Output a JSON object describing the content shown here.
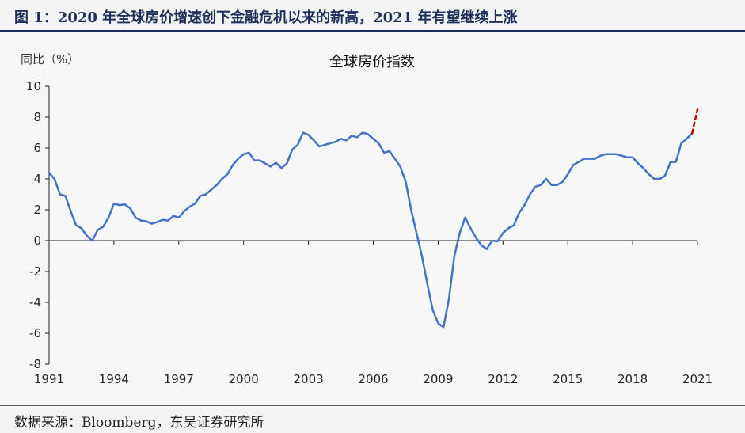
{
  "figure": {
    "title": "图 1：2020 年全球房价增速创下金融危机以来的新高，2021 年有望继续上涨",
    "source": "数据来源：Bloomberg，东吴证券研究所",
    "watermark": "watermark-text"
  },
  "colors": {
    "line": "#4472c4",
    "forecast": "#c00000",
    "axis": "#222222",
    "title_text": "#1f2f5c"
  },
  "chart_data": {
    "type": "line",
    "title": "全球房价指数",
    "ylabel": "同比（%）",
    "xlabel": "",
    "ylim": [
      -8,
      10
    ],
    "yticks": [
      10,
      8,
      6,
      4,
      2,
      0,
      -2,
      -4,
      -6,
      -8
    ],
    "xlim": [
      1991.0,
      2021.0
    ],
    "xticks": [
      "1991",
      "1994",
      "1997",
      "2000",
      "2003",
      "2006",
      "2009",
      "2012",
      "2015",
      "2018",
      "2021"
    ],
    "grid": false,
    "series": [
      {
        "style": "solid",
        "x": [
          1991.0,
          1991.25,
          1991.5,
          1991.75,
          1992.0,
          1992.25,
          1992.5,
          1992.75,
          1993.0,
          1993.25,
          1993.5,
          1993.75,
          1994.0,
          1994.25,
          1994.5,
          1994.75,
          1995.0,
          1995.25,
          1995.5,
          1995.75,
          1996.0,
          1996.25,
          1996.5,
          1996.75,
          1997.0,
          1997.25,
          1997.5,
          1997.75,
          1998.0,
          1998.25,
          1998.5,
          1998.75,
          1999.0,
          1999.25,
          1999.5,
          1999.75,
          2000.0,
          2000.25,
          2000.5,
          2000.75,
          2001.0,
          2001.25,
          2001.5,
          2001.75,
          2002.0,
          2002.25,
          2002.5,
          2002.75,
          2003.0,
          2003.25,
          2003.5,
          2003.75,
          2004.0,
          2004.25,
          2004.5,
          2004.75,
          2005.0,
          2005.25,
          2005.5,
          2005.75,
          2006.0,
          2006.25,
          2006.5,
          2006.75,
          2007.0,
          2007.25,
          2007.5,
          2007.75,
          2008.0,
          2008.25,
          2008.5,
          2008.75,
          2009.0,
          2009.25,
          2009.5,
          2009.75,
          2010.0,
          2010.25,
          2010.5,
          2010.75,
          2011.0,
          2011.25,
          2011.5,
          2011.75,
          2012.0,
          2012.25,
          2012.5,
          2012.75,
          2013.0,
          2013.25,
          2013.5,
          2013.75,
          2014.0,
          2014.25,
          2014.5,
          2014.75,
          2015.0,
          2015.25,
          2015.5,
          2015.75,
          2016.0,
          2016.25,
          2016.5,
          2016.75,
          2017.0,
          2017.25,
          2017.5,
          2017.75,
          2018.0,
          2018.25,
          2018.5,
          2018.75,
          2019.0,
          2019.25,
          2019.5,
          2019.75,
          2020.0,
          2020.25,
          2020.5,
          2020.75
        ],
        "y": [
          4.4,
          4.0,
          3.0,
          2.9,
          1.9,
          1.0,
          0.8,
          0.3,
          0.0,
          0.7,
          0.9,
          1.5,
          2.4,
          2.3,
          2.35,
          2.1,
          1.5,
          1.3,
          1.25,
          1.1,
          1.2,
          1.35,
          1.3,
          1.6,
          1.5,
          1.9,
          2.2,
          2.4,
          2.9,
          3.0,
          3.3,
          3.6,
          4.0,
          4.3,
          4.9,
          5.3,
          5.6,
          5.7,
          5.2,
          5.2,
          5.0,
          4.8,
          5.05,
          4.7,
          5.0,
          5.9,
          6.2,
          7.0,
          6.85,
          6.5,
          6.1,
          6.2,
          6.3,
          6.4,
          6.6,
          6.5,
          6.8,
          6.7,
          7.0,
          6.9,
          6.6,
          6.3,
          5.7,
          5.8,
          5.3,
          4.8,
          3.8,
          2.0,
          0.5,
          -1.0,
          -2.8,
          -4.5,
          -5.35,
          -5.6,
          -3.8,
          -1.0,
          0.5,
          1.5,
          0.8,
          0.2,
          -0.3,
          -0.55,
          0.0,
          -0.05,
          0.5,
          0.8,
          1.0,
          1.8,
          2.3,
          3.0,
          3.5,
          3.6,
          4.0,
          3.6,
          3.6,
          3.8,
          4.3,
          4.9,
          5.1,
          5.3,
          5.3,
          5.3,
          5.5,
          5.6,
          5.6,
          5.6,
          5.5,
          5.4,
          5.4,
          5.0,
          4.7,
          4.3,
          4.0,
          4.0,
          4.2,
          5.1,
          5.1,
          6.3,
          6.6,
          6.95
        ]
      },
      {
        "style": "dashed",
        "x": [
          2020.75,
          2021.0
        ],
        "y": [
          6.95,
          8.5
        ]
      }
    ]
  }
}
